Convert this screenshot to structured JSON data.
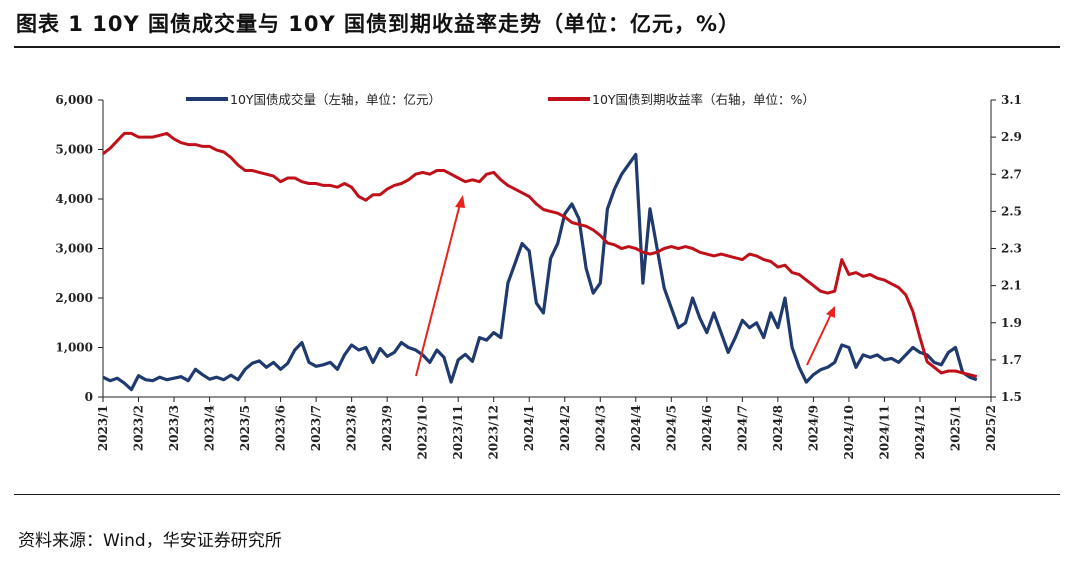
{
  "title": "图表 1  10Y 国债成交量与 10Y 国债到期收益率走势（单位：亿元，%）",
  "source": "资料来源：Wind，华安证券研究所",
  "chart_data": {
    "type": "line",
    "grid": false,
    "legend_position": "top",
    "x_tick_labels": [
      "2023/1",
      "2023/2",
      "2023/3",
      "2023/4",
      "2023/5",
      "2023/6",
      "2023/7",
      "2023/8",
      "2023/9",
      "2023/10",
      "2023/11",
      "2023/12",
      "2024/1",
      "2024/2",
      "2024/3",
      "2024/4",
      "2024/5",
      "2024/6",
      "2024/7",
      "2024/8",
      "2024/9",
      "2024/10",
      "2024/11",
      "2024/12",
      "2025/1",
      "2025/2"
    ],
    "left_axis": {
      "ylim": [
        0,
        6000
      ],
      "ticks": [
        "0",
        "1,000",
        "2,000",
        "3,000",
        "4,000",
        "5,000",
        "6,000"
      ]
    },
    "right_axis": {
      "ylim": [
        1.5,
        3.1
      ],
      "ticks": [
        "1.5",
        "1.7",
        "1.9",
        "2.1",
        "2.3",
        "2.5",
        "2.7",
        "2.9",
        "3.1"
      ]
    },
    "series": [
      {
        "name": "10Y国债成交量（左轴，单位：亿元）",
        "axis": "left",
        "color": "#1f3a6e",
        "points": [
          [
            0,
            400
          ],
          [
            0.2,
            330
          ],
          [
            0.4,
            380
          ],
          [
            0.6,
            280
          ],
          [
            0.8,
            150
          ],
          [
            1.0,
            430
          ],
          [
            1.2,
            350
          ],
          [
            1.4,
            330
          ],
          [
            1.6,
            400
          ],
          [
            1.8,
            350
          ],
          [
            2.0,
            380
          ],
          [
            2.2,
            410
          ],
          [
            2.4,
            330
          ],
          [
            2.6,
            560
          ],
          [
            2.8,
            450
          ],
          [
            3.0,
            360
          ],
          [
            3.2,
            400
          ],
          [
            3.4,
            350
          ],
          [
            3.6,
            440
          ],
          [
            3.8,
            350
          ],
          [
            4.0,
            560
          ],
          [
            4.2,
            680
          ],
          [
            4.4,
            730
          ],
          [
            4.6,
            600
          ],
          [
            4.8,
            700
          ],
          [
            5.0,
            560
          ],
          [
            5.2,
            680
          ],
          [
            5.4,
            950
          ],
          [
            5.6,
            1100
          ],
          [
            5.8,
            700
          ],
          [
            6.0,
            620
          ],
          [
            6.2,
            650
          ],
          [
            6.4,
            700
          ],
          [
            6.6,
            560
          ],
          [
            6.8,
            850
          ],
          [
            7.0,
            1050
          ],
          [
            7.2,
            950
          ],
          [
            7.4,
            1000
          ],
          [
            7.6,
            700
          ],
          [
            7.8,
            980
          ],
          [
            8.0,
            820
          ],
          [
            8.2,
            900
          ],
          [
            8.4,
            1100
          ],
          [
            8.6,
            1000
          ],
          [
            8.8,
            950
          ],
          [
            9.0,
            850
          ],
          [
            9.2,
            700
          ],
          [
            9.4,
            950
          ],
          [
            9.6,
            800
          ],
          [
            9.8,
            300
          ],
          [
            10.0,
            750
          ],
          [
            10.2,
            860
          ],
          [
            10.4,
            720
          ],
          [
            10.6,
            1200
          ],
          [
            10.8,
            1150
          ],
          [
            11.0,
            1300
          ],
          [
            11.2,
            1200
          ],
          [
            11.4,
            2300
          ],
          [
            11.6,
            2700
          ],
          [
            11.8,
            3100
          ],
          [
            12.0,
            2950
          ],
          [
            12.2,
            1900
          ],
          [
            12.4,
            1700
          ],
          [
            12.6,
            2800
          ],
          [
            12.8,
            3100
          ],
          [
            13.0,
            3700
          ],
          [
            13.2,
            3900
          ],
          [
            13.4,
            3600
          ],
          [
            13.6,
            2600
          ],
          [
            13.8,
            2100
          ],
          [
            14.0,
            2300
          ],
          [
            14.2,
            3800
          ],
          [
            14.4,
            4200
          ],
          [
            14.6,
            4500
          ],
          [
            14.8,
            4700
          ],
          [
            15.0,
            4900
          ],
          [
            15.2,
            2300
          ],
          [
            15.4,
            3800
          ],
          [
            15.6,
            3000
          ],
          [
            15.8,
            2200
          ],
          [
            16.0,
            1800
          ],
          [
            16.2,
            1400
          ],
          [
            16.4,
            1500
          ],
          [
            16.6,
            2000
          ],
          [
            16.8,
            1600
          ],
          [
            17.0,
            1300
          ],
          [
            17.2,
            1700
          ],
          [
            17.4,
            1300
          ],
          [
            17.6,
            900
          ],
          [
            17.8,
            1200
          ],
          [
            18.0,
            1550
          ],
          [
            18.2,
            1400
          ],
          [
            18.4,
            1500
          ],
          [
            18.6,
            1200
          ],
          [
            18.8,
            1700
          ],
          [
            19.0,
            1400
          ],
          [
            19.2,
            2000
          ],
          [
            19.4,
            1000
          ],
          [
            19.6,
            600
          ],
          [
            19.8,
            300
          ],
          [
            20.0,
            450
          ],
          [
            20.2,
            550
          ],
          [
            20.4,
            600
          ],
          [
            20.6,
            700
          ],
          [
            20.8,
            1050
          ],
          [
            21.0,
            1000
          ],
          [
            21.2,
            600
          ],
          [
            21.4,
            850
          ],
          [
            21.6,
            800
          ],
          [
            21.8,
            850
          ],
          [
            22.0,
            750
          ],
          [
            22.2,
            780
          ],
          [
            22.4,
            700
          ],
          [
            22.6,
            850
          ],
          [
            22.8,
            1000
          ],
          [
            23.0,
            900
          ],
          [
            23.2,
            850
          ],
          [
            23.4,
            700
          ],
          [
            23.6,
            650
          ],
          [
            23.8,
            900
          ],
          [
            24.0,
            1000
          ],
          [
            24.2,
            500
          ],
          [
            24.4,
            400
          ],
          [
            24.6,
            350
          ]
        ]
      },
      {
        "name": "10Y国债到期收益率（右轴，单位：%）",
        "axis": "right",
        "color": "#c0101a",
        "points": [
          [
            0,
            2.81
          ],
          [
            0.2,
            2.84
          ],
          [
            0.4,
            2.88
          ],
          [
            0.6,
            2.92
          ],
          [
            0.8,
            2.92
          ],
          [
            1.0,
            2.9
          ],
          [
            1.2,
            2.9
          ],
          [
            1.4,
            2.9
          ],
          [
            1.6,
            2.91
          ],
          [
            1.8,
            2.92
          ],
          [
            2.0,
            2.89
          ],
          [
            2.2,
            2.87
          ],
          [
            2.4,
            2.86
          ],
          [
            2.6,
            2.86
          ],
          [
            2.8,
            2.85
          ],
          [
            3.0,
            2.85
          ],
          [
            3.2,
            2.83
          ],
          [
            3.4,
            2.82
          ],
          [
            3.6,
            2.79
          ],
          [
            3.8,
            2.75
          ],
          [
            4.0,
            2.72
          ],
          [
            4.2,
            2.72
          ],
          [
            4.4,
            2.71
          ],
          [
            4.6,
            2.7
          ],
          [
            4.8,
            2.69
          ],
          [
            5.0,
            2.66
          ],
          [
            5.2,
            2.68
          ],
          [
            5.4,
            2.68
          ],
          [
            5.6,
            2.66
          ],
          [
            5.8,
            2.65
          ],
          [
            6.0,
            2.65
          ],
          [
            6.2,
            2.64
          ],
          [
            6.4,
            2.64
          ],
          [
            6.6,
            2.63
          ],
          [
            6.8,
            2.65
          ],
          [
            7.0,
            2.63
          ],
          [
            7.2,
            2.58
          ],
          [
            7.4,
            2.56
          ],
          [
            7.6,
            2.59
          ],
          [
            7.8,
            2.59
          ],
          [
            8.0,
            2.62
          ],
          [
            8.2,
            2.64
          ],
          [
            8.4,
            2.65
          ],
          [
            8.6,
            2.67
          ],
          [
            8.8,
            2.7
          ],
          [
            9.0,
            2.71
          ],
          [
            9.2,
            2.7
          ],
          [
            9.4,
            2.72
          ],
          [
            9.6,
            2.72
          ],
          [
            9.8,
            2.7
          ],
          [
            10.0,
            2.68
          ],
          [
            10.2,
            2.66
          ],
          [
            10.4,
            2.67
          ],
          [
            10.6,
            2.66
          ],
          [
            10.8,
            2.7
          ],
          [
            11.0,
            2.71
          ],
          [
            11.2,
            2.67
          ],
          [
            11.4,
            2.64
          ],
          [
            11.6,
            2.62
          ],
          [
            11.8,
            2.6
          ],
          [
            12.0,
            2.58
          ],
          [
            12.2,
            2.54
          ],
          [
            12.4,
            2.51
          ],
          [
            12.6,
            2.5
          ],
          [
            12.8,
            2.49
          ],
          [
            13.0,
            2.47
          ],
          [
            13.2,
            2.44
          ],
          [
            13.4,
            2.43
          ],
          [
            13.6,
            2.42
          ],
          [
            13.8,
            2.4
          ],
          [
            14.0,
            2.37
          ],
          [
            14.2,
            2.33
          ],
          [
            14.4,
            2.32
          ],
          [
            14.6,
            2.3
          ],
          [
            14.8,
            2.31
          ],
          [
            15.0,
            2.3
          ],
          [
            15.2,
            2.28
          ],
          [
            15.4,
            2.27
          ],
          [
            15.6,
            2.28
          ],
          [
            15.8,
            2.3
          ],
          [
            16.0,
            2.31
          ],
          [
            16.2,
            2.3
          ],
          [
            16.4,
            2.31
          ],
          [
            16.6,
            2.3
          ],
          [
            16.8,
            2.28
          ],
          [
            17.0,
            2.27
          ],
          [
            17.2,
            2.26
          ],
          [
            17.4,
            2.27
          ],
          [
            17.6,
            2.26
          ],
          [
            17.8,
            2.25
          ],
          [
            18.0,
            2.24
          ],
          [
            18.2,
            2.27
          ],
          [
            18.4,
            2.26
          ],
          [
            18.6,
            2.24
          ],
          [
            18.8,
            2.23
          ],
          [
            19.0,
            2.2
          ],
          [
            19.2,
            2.21
          ],
          [
            19.4,
            2.17
          ],
          [
            19.6,
            2.16
          ],
          [
            19.8,
            2.13
          ],
          [
            20.0,
            2.1
          ],
          [
            20.2,
            2.07
          ],
          [
            20.4,
            2.06
          ],
          [
            20.6,
            2.07
          ],
          [
            20.8,
            2.24
          ],
          [
            21.0,
            2.16
          ],
          [
            21.2,
            2.17
          ],
          [
            21.4,
            2.15
          ],
          [
            21.6,
            2.16
          ],
          [
            21.8,
            2.14
          ],
          [
            22.0,
            2.13
          ],
          [
            22.2,
            2.11
          ],
          [
            22.4,
            2.09
          ],
          [
            22.6,
            2.05
          ],
          [
            22.8,
            1.96
          ],
          [
            23.0,
            1.82
          ],
          [
            23.2,
            1.69
          ],
          [
            23.4,
            1.66
          ],
          [
            23.6,
            1.63
          ],
          [
            23.8,
            1.64
          ],
          [
            24.0,
            1.64
          ],
          [
            24.2,
            1.63
          ],
          [
            24.4,
            1.62
          ],
          [
            24.6,
            1.61
          ]
        ]
      }
    ]
  }
}
